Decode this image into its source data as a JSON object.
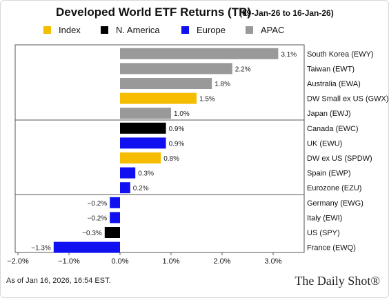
{
  "chart_data": {
    "type": "bar",
    "orientation": "horizontal",
    "title": "Developed World ETF Returns (TR)",
    "subtitle": "(09-Jan-26 to 16-Jan-26)",
    "legend": [
      {
        "name": "Index",
        "color": "#F5BC00"
      },
      {
        "name": "N. America",
        "color": "#000000"
      },
      {
        "name": "Europe",
        "color": "#1010F0"
      },
      {
        "name": "APAC",
        "color": "#999999"
      }
    ],
    "legend_position": "top",
    "xlim": [
      -2.0,
      3.6
    ],
    "x_ticks": [
      -2.0,
      -1.0,
      0.0,
      1.0,
      2.0,
      3.0
    ],
    "x_tick_labels": [
      "−2.0%",
      "−1.0%",
      "0.0%",
      "1.0%",
      "2.0%",
      "3.0%"
    ],
    "grid": false,
    "group_separators_after": [
      4,
      9
    ],
    "bars": [
      {
        "label": "South Korea (EWY)",
        "value": 3.1,
        "display": "3.1%",
        "group": "APAC"
      },
      {
        "label": "Taiwan (EWT)",
        "value": 2.2,
        "display": "2.2%",
        "group": "APAC"
      },
      {
        "label": "Australia (EWA)",
        "value": 1.8,
        "display": "1.8%",
        "group": "APAC"
      },
      {
        "label": "DW Small ex US (GWX)",
        "value": 1.5,
        "display": "1.5%",
        "group": "Index"
      },
      {
        "label": "Japan (EWJ)",
        "value": 1.0,
        "display": "1.0%",
        "group": "APAC"
      },
      {
        "label": "Canada (EWC)",
        "value": 0.9,
        "display": "0.9%",
        "group": "N. America"
      },
      {
        "label": "UK (EWU)",
        "value": 0.9,
        "display": "0.9%",
        "group": "Europe"
      },
      {
        "label": "DW ex US (SPDW)",
        "value": 0.8,
        "display": "0.8%",
        "group": "Index"
      },
      {
        "label": "Spain (EWP)",
        "value": 0.3,
        "display": "0.3%",
        "group": "Europe"
      },
      {
        "label": "Eurozone (EZU)",
        "value": 0.2,
        "display": "0.2%",
        "group": "Europe"
      },
      {
        "label": "Germany (EWG)",
        "value": -0.2,
        "display": "−0.2%",
        "group": "Europe"
      },
      {
        "label": "Italy (EWI)",
        "value": -0.2,
        "display": "−0.2%",
        "group": "Europe"
      },
      {
        "label": "US (SPY)",
        "value": -0.3,
        "display": "−0.3%",
        "group": "N. America"
      },
      {
        "label": "France (EWQ)",
        "value": -1.3,
        "display": "−1.3%",
        "group": "Europe"
      }
    ]
  },
  "footer": {
    "note": "As of Jan 16, 2026, 16:54 EST.",
    "brand": "The Daily Shot®"
  }
}
